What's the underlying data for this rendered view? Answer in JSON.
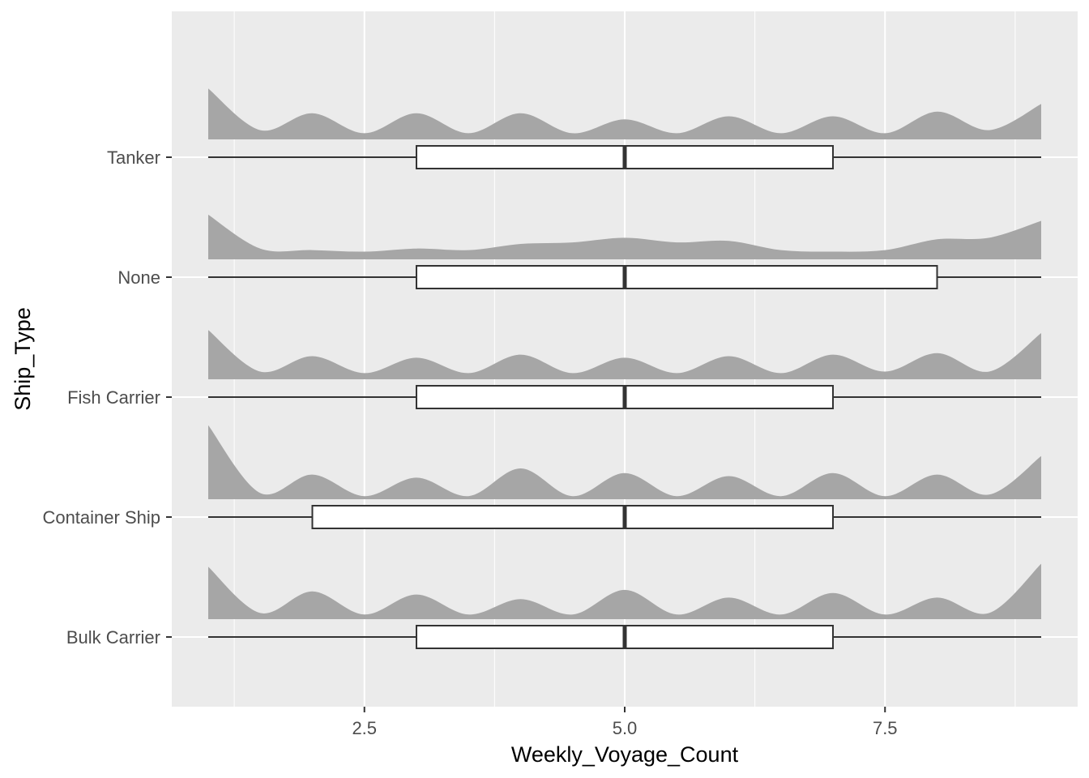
{
  "chart_data": {
    "type": "raincloud",
    "xlabel": "Weekly_Voyage_Count",
    "ylabel": "Ship_Type",
    "xlim": [
      0.65,
      9.35
    ],
    "x_ticks": [
      2.5,
      5.0,
      7.5
    ],
    "x_tick_labels": [
      "2.5",
      "5.0",
      "7.5"
    ],
    "x_minor_ticks": [
      1.25,
      3.75,
      6.25,
      8.75
    ],
    "grid": true,
    "panel_color": "#ebebeb",
    "density_color": "#a6a6a6",
    "categories": [
      "Bulk Carrier",
      "Container Ship",
      "Fish Carrier",
      "None",
      "Tanker"
    ],
    "boxplots": [
      {
        "name": "Bulk Carrier",
        "min": 1,
        "q1": 3,
        "median": 5,
        "q3": 7,
        "max": 9
      },
      {
        "name": "Container Ship",
        "min": 1,
        "q1": 2,
        "median": 5,
        "q3": 7,
        "max": 9
      },
      {
        "name": "Fish Carrier",
        "min": 1,
        "q1": 3,
        "median": 5,
        "q3": 7,
        "max": 9
      },
      {
        "name": "None",
        "min": 1,
        "q1": 3,
        "median": 5,
        "q3": 8,
        "max": 9
      },
      {
        "name": "Tanker",
        "min": 1,
        "q1": 3,
        "median": 5,
        "q3": 7,
        "max": 9
      }
    ],
    "densities": [
      {
        "name": "Bulk Carrier",
        "x": [
          1,
          1.5,
          2,
          2.5,
          3,
          3.5,
          4,
          4.5,
          5,
          5.5,
          6,
          6.5,
          7,
          7.5,
          8,
          8.5,
          9
        ],
        "y": [
          0.34,
          0.04,
          0.18,
          0.03,
          0.16,
          0.03,
          0.13,
          0.03,
          0.19,
          0.03,
          0.14,
          0.03,
          0.17,
          0.03,
          0.14,
          0.04,
          0.36
        ]
      },
      {
        "name": "Container Ship",
        "x": [
          1,
          1.5,
          2,
          2.5,
          3,
          3.5,
          4,
          4.5,
          5,
          5.5,
          6,
          6.5,
          7,
          7.5,
          8,
          8.5,
          9
        ],
        "y": [
          0.48,
          0.04,
          0.16,
          0.02,
          0.14,
          0.02,
          0.2,
          0.02,
          0.17,
          0.02,
          0.15,
          0.02,
          0.17,
          0.02,
          0.16,
          0.03,
          0.28
        ]
      },
      {
        "name": "Fish Carrier",
        "x": [
          1,
          1.5,
          2,
          2.5,
          3,
          3.5,
          4,
          4.5,
          5,
          5.5,
          6,
          6.5,
          7,
          7.5,
          8,
          8.5,
          9
        ],
        "y": [
          0.32,
          0.05,
          0.15,
          0.04,
          0.14,
          0.04,
          0.16,
          0.04,
          0.14,
          0.04,
          0.15,
          0.04,
          0.16,
          0.05,
          0.17,
          0.05,
          0.3
        ]
      },
      {
        "name": "None",
        "x": [
          1,
          1.5,
          2,
          2.5,
          3,
          3.5,
          4,
          4.5,
          5,
          5.5,
          6,
          6.5,
          7,
          7.5,
          8,
          8.5,
          9
        ],
        "y": [
          0.29,
          0.07,
          0.06,
          0.05,
          0.07,
          0.06,
          0.1,
          0.11,
          0.14,
          0.11,
          0.12,
          0.06,
          0.05,
          0.06,
          0.13,
          0.14,
          0.25
        ]
      },
      {
        "name": "Tanker",
        "x": [
          1,
          1.5,
          2,
          2.5,
          3,
          3.5,
          4,
          4.5,
          5,
          5.5,
          6,
          6.5,
          7,
          7.5,
          8,
          8.5,
          9
        ],
        "y": [
          0.33,
          0.06,
          0.17,
          0.04,
          0.17,
          0.04,
          0.17,
          0.04,
          0.13,
          0.04,
          0.15,
          0.04,
          0.15,
          0.04,
          0.18,
          0.06,
          0.23
        ]
      }
    ]
  }
}
